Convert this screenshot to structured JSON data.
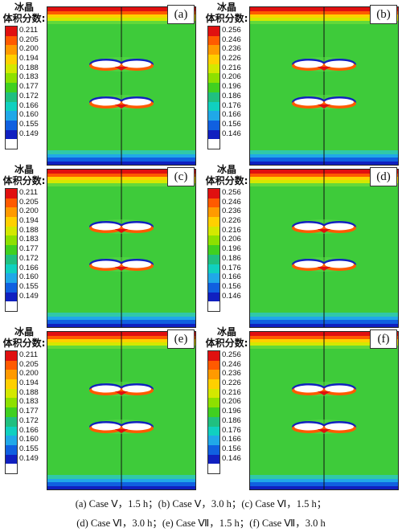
{
  "legend_title_line1": "冰晶",
  "legend_title_line2": "体积分数:",
  "scale_a": [
    "0.211",
    "0.205",
    "0.200",
    "0.194",
    "0.188",
    "0.183",
    "0.177",
    "0.172",
    "0.166",
    "0.160",
    "0.155",
    "0.149"
  ],
  "scale_b": [
    "0.256",
    "0.246",
    "0.236",
    "0.226",
    "0.216",
    "0.206",
    "0.196",
    "0.186",
    "0.176",
    "0.166",
    "0.156",
    "0.146"
  ],
  "colors": [
    "#e01010",
    "#ff5a00",
    "#ff9a00",
    "#ffd000",
    "#d4e800",
    "#8ee000",
    "#40d020",
    "#20c080",
    "#10d0c0",
    "#20a8e8",
    "#1060e0",
    "#1020c0"
  ],
  "field_color": "#3ecb3a",
  "panels": [
    {
      "label": "(a)",
      "scale": "a"
    },
    {
      "label": "(b)",
      "scale": "b"
    },
    {
      "label": "(c)",
      "scale": "a"
    },
    {
      "label": "(d)",
      "scale": "b"
    },
    {
      "label": "(e)",
      "scale": "a"
    },
    {
      "label": "(f)",
      "scale": "b"
    }
  ],
  "caption": {
    "line1": "(a) Case Ⅴ，1.5 h；(b) Case Ⅴ，3.0 h；(c) Case Ⅵ，1.5 h；",
    "line2": "(d) Case Ⅵ，3.0 h；(e) Case Ⅶ，1.5 h；(f) Case Ⅶ，3.0 h"
  }
}
